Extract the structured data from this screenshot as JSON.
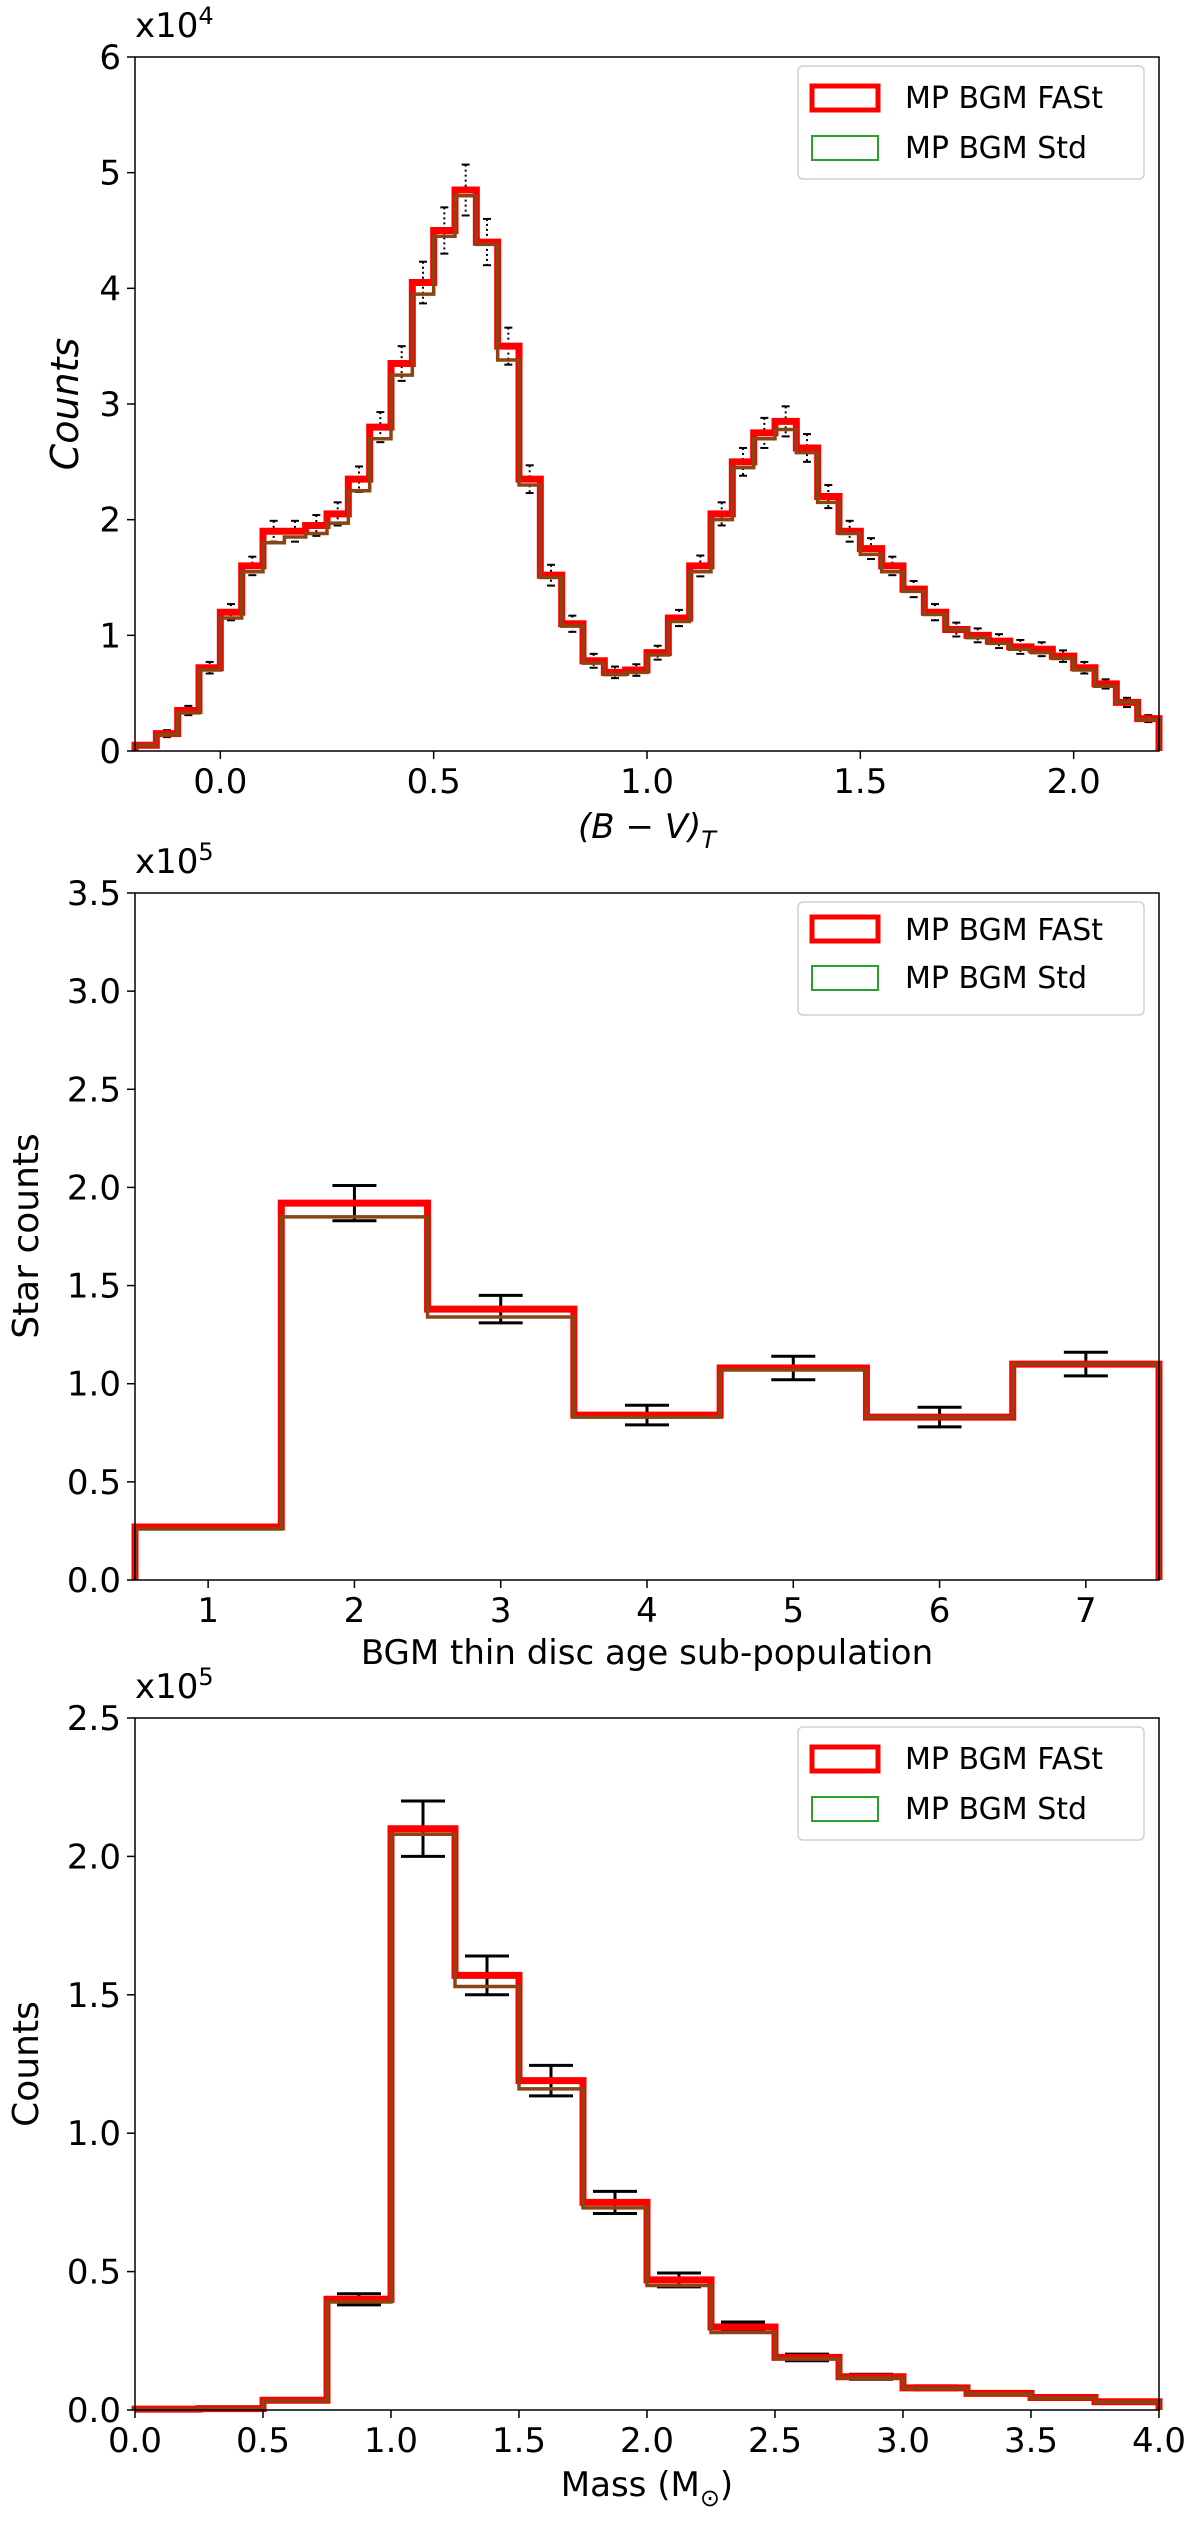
{
  "figure": {
    "legend_fast": "MP BGM FASt",
    "legend_std": "MP BGM Std",
    "colors": {
      "fast": "#ff0000",
      "std": "#2ca02c",
      "overlap": "#8b4513",
      "error": "#000000"
    }
  },
  "chart_data": [
    {
      "type": "step-histogram",
      "multiplier": "x10",
      "exponent": "4",
      "xlabel": "(B − V)",
      "xlabel_sub": "T",
      "ylabel": "Counts",
      "xlim": [
        -0.2,
        2.2
      ],
      "ylim": [
        0,
        6
      ],
      "xticks": [
        0.0,
        0.5,
        1.0,
        1.5,
        2.0
      ],
      "xtick_labels": [
        "0.0",
        "0.5",
        "1.0",
        "1.5",
        "2.0"
      ],
      "yticks": [
        0,
        1,
        2,
        3,
        4,
        5,
        6
      ],
      "ytick_labels": [
        "0",
        "1",
        "2",
        "3",
        "4",
        "5",
        "6"
      ],
      "legend_position": "top-right",
      "error_style": "dotted",
      "bin_edges": [
        -0.2,
        -0.15,
        -0.1,
        -0.05,
        0.0,
        0.05,
        0.1,
        0.15,
        0.2,
        0.25,
        0.3,
        0.35,
        0.4,
        0.45,
        0.5,
        0.55,
        0.6,
        0.65,
        0.7,
        0.75,
        0.8,
        0.85,
        0.9,
        0.95,
        1.0,
        1.05,
        1.1,
        1.15,
        1.2,
        1.25,
        1.3,
        1.35,
        1.4,
        1.45,
        1.5,
        1.55,
        1.6,
        1.65,
        1.7,
        1.75,
        1.8,
        1.85,
        1.9,
        1.95,
        2.0,
        2.05,
        2.1,
        2.15,
        2.2
      ],
      "series": [
        {
          "name": "MP BGM FASt",
          "values": [
            0.05,
            0.15,
            0.35,
            0.72,
            1.2,
            1.6,
            1.9,
            1.9,
            1.95,
            2.05,
            2.35,
            2.8,
            3.35,
            4.05,
            4.5,
            4.85,
            4.4,
            3.5,
            2.35,
            1.52,
            1.1,
            0.78,
            0.68,
            0.7,
            0.85,
            1.15,
            1.6,
            2.05,
            2.5,
            2.75,
            2.85,
            2.62,
            2.2,
            1.9,
            1.75,
            1.6,
            1.4,
            1.2,
            1.05,
            1.0,
            0.95,
            0.9,
            0.88,
            0.82,
            0.72,
            0.58,
            0.42,
            0.28
          ]
        },
        {
          "name": "MP BGM Std",
          "values": [
            0.05,
            0.14,
            0.33,
            0.7,
            1.15,
            1.55,
            1.8,
            1.85,
            1.88,
            1.97,
            2.25,
            2.7,
            3.25,
            3.95,
            4.45,
            4.8,
            4.38,
            3.38,
            2.3,
            1.5,
            1.08,
            0.76,
            0.66,
            0.68,
            0.83,
            1.12,
            1.55,
            2.0,
            2.45,
            2.7,
            2.78,
            2.58,
            2.15,
            1.88,
            1.7,
            1.55,
            1.38,
            1.18,
            1.05,
            0.98,
            0.93,
            0.88,
            0.85,
            0.8,
            0.7,
            0.56,
            0.42,
            0.27
          ]
        }
      ],
      "errors": [
        0.02,
        0.03,
        0.04,
        0.05,
        0.07,
        0.08,
        0.09,
        0.09,
        0.09,
        0.1,
        0.11,
        0.13,
        0.15,
        0.18,
        0.2,
        0.22,
        0.2,
        0.16,
        0.12,
        0.09,
        0.07,
        0.06,
        0.05,
        0.05,
        0.06,
        0.07,
        0.09,
        0.1,
        0.12,
        0.13,
        0.13,
        0.12,
        0.1,
        0.09,
        0.09,
        0.08,
        0.07,
        0.07,
        0.06,
        0.06,
        0.06,
        0.06,
        0.06,
        0.05,
        0.05,
        0.04,
        0.04,
        0.03
      ]
    },
    {
      "type": "step-histogram",
      "multiplier": "x10",
      "exponent": "5",
      "xlabel": "BGM thin disc age sub-population",
      "ylabel": "Star counts",
      "xlim": [
        0.5,
        7.5
      ],
      "ylim": [
        0,
        3.5
      ],
      "xticks": [
        1,
        2,
        3,
        4,
        5,
        6,
        7
      ],
      "xtick_labels": [
        "1",
        "2",
        "3",
        "4",
        "5",
        "6",
        "7"
      ],
      "yticks": [
        0,
        0.5,
        1.0,
        1.5,
        2.0,
        2.5,
        3.0,
        3.5
      ],
      "ytick_labels": [
        "0.0",
        "0.5",
        "1.0",
        "1.5",
        "2.0",
        "2.5",
        "3.0",
        "3.5"
      ],
      "legend_position": "top-right",
      "error_style": "solid",
      "bin_edges": [
        0.5,
        1.5,
        2.5,
        3.5,
        4.5,
        5.5,
        6.5,
        7.5
      ],
      "series": [
        {
          "name": "MP BGM FASt",
          "values": [
            0.27,
            1.92,
            1.38,
            0.84,
            1.08,
            0.83,
            1.1
          ]
        },
        {
          "name": "MP BGM Std",
          "values": [
            0.26,
            1.85,
            1.34,
            0.83,
            1.07,
            0.83,
            1.1
          ]
        }
      ],
      "errors": [
        0.01,
        0.09,
        0.07,
        0.05,
        0.06,
        0.05,
        0.06
      ]
    },
    {
      "type": "step-histogram",
      "multiplier": "x10",
      "exponent": "5",
      "xlabel": "Mass (M",
      "xlabel_sub": "⊙",
      "xlabel_tail": ")",
      "ylabel": "Counts",
      "xlim": [
        0.0,
        4.0
      ],
      "ylim": [
        0,
        2.5
      ],
      "xticks": [
        0.0,
        0.5,
        1.0,
        1.5,
        2.0,
        2.5,
        3.0,
        3.5,
        4.0
      ],
      "xtick_labels": [
        "0.0",
        "0.5",
        "1.0",
        "1.5",
        "2.0",
        "2.5",
        "3.0",
        "3.5",
        "4.0"
      ],
      "yticks": [
        0,
        0.5,
        1.0,
        1.5,
        2.0,
        2.5
      ],
      "ytick_labels": [
        "0.0",
        "0.5",
        "1.0",
        "1.5",
        "2.0",
        "2.5"
      ],
      "legend_position": "top-right",
      "error_style": "solid",
      "bin_edges": [
        0.0,
        0.25,
        0.5,
        0.75,
        1.0,
        1.25,
        1.5,
        1.75,
        2.0,
        2.25,
        2.5,
        2.75,
        3.0,
        3.25,
        3.5,
        3.75,
        4.0
      ],
      "series": [
        {
          "name": "MP BGM FASt",
          "values": [
            0.003,
            0.005,
            0.035,
            0.4,
            2.1,
            1.57,
            1.19,
            0.75,
            0.47,
            0.3,
            0.19,
            0.12,
            0.08,
            0.06,
            0.045,
            0.03
          ]
        },
        {
          "name": "MP BGM Std",
          "values": [
            0.003,
            0.005,
            0.033,
            0.39,
            2.08,
            1.53,
            1.16,
            0.73,
            0.45,
            0.28,
            0.185,
            0.115,
            0.078,
            0.058,
            0.043,
            0.029
          ]
        }
      ],
      "errors": [
        0.001,
        0.002,
        0.005,
        0.02,
        0.1,
        0.07,
        0.055,
        0.04,
        0.025,
        0.018,
        0.012,
        0.009,
        0.007,
        0.005,
        0.004,
        0.003
      ]
    }
  ]
}
